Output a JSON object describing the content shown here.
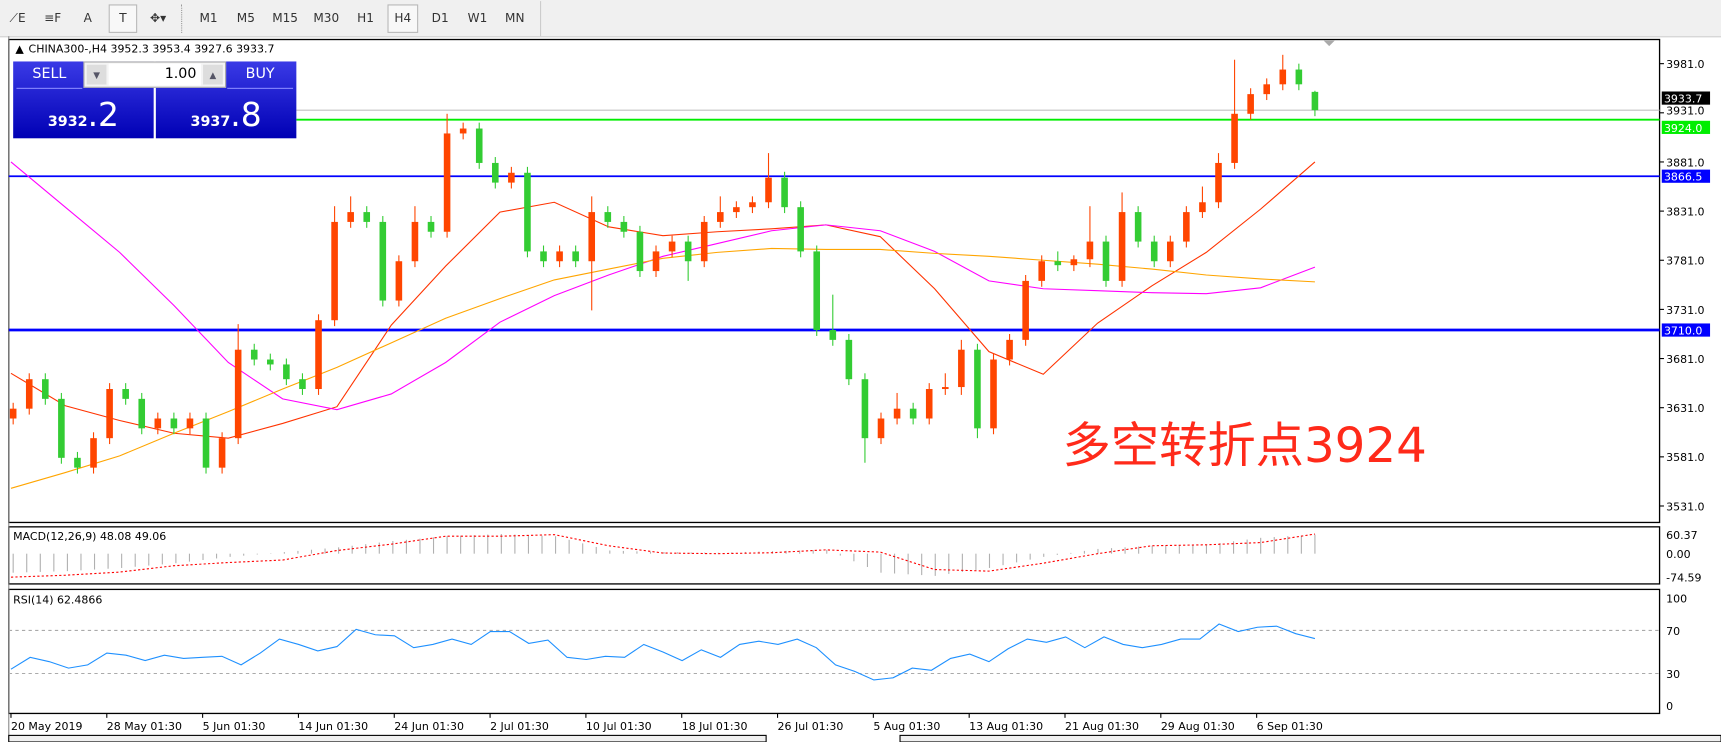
{
  "toolbar": {
    "tools": [
      {
        "name": "fibonacci-expansion-icon",
        "label": "⟋E"
      },
      {
        "name": "fibonacci-lines-icon",
        "label": "≡F"
      },
      {
        "name": "text-icon",
        "label": "A"
      },
      {
        "name": "text-label-icon",
        "label": "T"
      },
      {
        "name": "arrows-icon",
        "label": "✥▾"
      }
    ],
    "timeframes": [
      "M1",
      "M5",
      "M15",
      "M30",
      "H1",
      "H4",
      "D1",
      "W1",
      "MN"
    ],
    "active_timeframe": "H4"
  },
  "header": {
    "symbol": "CHINA300-,H4",
    "ohlc": "3952.3 3953.4 3927.6 3933.7"
  },
  "trade_panel": {
    "sell_label": "SELL",
    "buy_label": "BUY",
    "lot": "1.00",
    "sell_main": "3932",
    "sell_frac": ".2",
    "buy_main": "3937",
    "buy_frac": ".8"
  },
  "annotation": "多空转折点3924",
  "colors": {
    "up": "#ff4500",
    "down": "#33cc33",
    "ma_fast": "#ff3300",
    "ma_mid": "#ff00ff",
    "ma_slow": "#ffa500",
    "support": "#0000ff",
    "pivot": "#00ee00",
    "macd_signal": "#ff0000",
    "rsi": "#1e90ff"
  },
  "chart_data": [
    {
      "type": "candlestick",
      "ylim": [
        3511,
        4001
      ],
      "y_ticks": [
        "3981.0",
        "3931.0",
        "3881.0",
        "3831.0",
        "3781.0",
        "3731.0",
        "3681.0",
        "3631.0",
        "3581.0",
        "3531.0"
      ],
      "x_ticks": [
        "20 May 2019",
        "28 May 01:30",
        "5 Jun 01:30",
        "14 Jun 01:30",
        "24 Jun 01:30",
        "2 Jul 01:30",
        "10 Jul 01:30",
        "18 Jul 01:30",
        "26 Jul 01:30",
        "5 Aug 01:30",
        "13 Aug 01:30",
        "21 Aug 01:30",
        "29 Aug 01:30",
        "6 Sep 01:30"
      ],
      "ohlc": [
        [
          3620,
          3636,
          3614,
          3630
        ],
        [
          3630,
          3666,
          3624,
          3660
        ],
        [
          3660,
          3666,
          3634,
          3640
        ],
        [
          3640,
          3646,
          3574,
          3580
        ],
        [
          3580,
          3586,
          3564,
          3570
        ],
        [
          3570,
          3606,
          3564,
          3600
        ],
        [
          3600,
          3656,
          3594,
          3650
        ],
        [
          3650,
          3656,
          3634,
          3640
        ],
        [
          3640,
          3646,
          3604,
          3610
        ],
        [
          3610,
          3626,
          3604,
          3620
        ],
        [
          3620,
          3626,
          3604,
          3610
        ],
        [
          3610,
          3626,
          3604,
          3620
        ],
        [
          3620,
          3626,
          3564,
          3570
        ],
        [
          3570,
          3606,
          3564,
          3600
        ],
        [
          3600,
          3716,
          3594,
          3690
        ],
        [
          3690,
          3696,
          3674,
          3680
        ],
        [
          3680,
          3686,
          3669,
          3675
        ],
        [
          3675,
          3681,
          3654,
          3660
        ],
        [
          3660,
          3666,
          3644,
          3650
        ],
        [
          3650,
          3726,
          3644,
          3720
        ],
        [
          3720,
          3836,
          3714,
          3820
        ],
        [
          3820,
          3846,
          3814,
          3830
        ],
        [
          3830,
          3836,
          3814,
          3820
        ],
        [
          3820,
          3826,
          3734,
          3740
        ],
        [
          3740,
          3786,
          3734,
          3780
        ],
        [
          3780,
          3836,
          3774,
          3820
        ],
        [
          3820,
          3826,
          3804,
          3810
        ],
        [
          3810,
          3930,
          3804,
          3910
        ],
        [
          3910,
          3921,
          3904,
          3915
        ],
        [
          3915,
          3921,
          3874,
          3880
        ],
        [
          3880,
          3886,
          3854,
          3860
        ],
        [
          3860,
          3876,
          3854,
          3870
        ],
        [
          3870,
          3876,
          3784,
          3790
        ],
        [
          3790,
          3796,
          3774,
          3780
        ],
        [
          3780,
          3796,
          3774,
          3790
        ],
        [
          3790,
          3796,
          3774,
          3780
        ],
        [
          3780,
          3846,
          3730,
          3830
        ],
        [
          3830,
          3836,
          3814,
          3820
        ],
        [
          3820,
          3826,
          3804,
          3810
        ],
        [
          3810,
          3816,
          3764,
          3770
        ],
        [
          3770,
          3796,
          3764,
          3790
        ],
        [
          3790,
          3806,
          3784,
          3800
        ],
        [
          3800,
          3806,
          3760,
          3780
        ],
        [
          3780,
          3826,
          3774,
          3820
        ],
        [
          3820,
          3846,
          3814,
          3830
        ],
        [
          3830,
          3841,
          3824,
          3835
        ],
        [
          3835,
          3846,
          3829,
          3840
        ],
        [
          3840,
          3890,
          3834,
          3865
        ],
        [
          3865,
          3871,
          3829,
          3835
        ],
        [
          3835,
          3841,
          3784,
          3790
        ],
        [
          3790,
          3796,
          3704,
          3710
        ],
        [
          3710,
          3746,
          3694,
          3700
        ],
        [
          3700,
          3706,
          3654,
          3660
        ],
        [
          3660,
          3666,
          3575,
          3600
        ],
        [
          3600,
          3626,
          3594,
          3620
        ],
        [
          3620,
          3646,
          3614,
          3630
        ],
        [
          3630,
          3636,
          3614,
          3620
        ],
        [
          3620,
          3656,
          3614,
          3650
        ],
        [
          3650,
          3666,
          3644,
          3652
        ],
        [
          3652,
          3700,
          3644,
          3690
        ],
        [
          3690,
          3696,
          3600,
          3610
        ],
        [
          3610,
          3686,
          3604,
          3680
        ],
        [
          3680,
          3706,
          3674,
          3700
        ],
        [
          3700,
          3766,
          3694,
          3760
        ],
        [
          3760,
          3786,
          3754,
          3780
        ],
        [
          3780,
          3790,
          3770,
          3776
        ],
        [
          3776,
          3786,
          3770,
          3782
        ],
        [
          3782,
          3836,
          3774,
          3800
        ],
        [
          3800,
          3806,
          3754,
          3760
        ],
        [
          3760,
          3850,
          3754,
          3830
        ],
        [
          3830,
          3836,
          3794,
          3800
        ],
        [
          3800,
          3806,
          3774,
          3780
        ],
        [
          3780,
          3806,
          3774,
          3800
        ],
        [
          3800,
          3836,
          3794,
          3830
        ],
        [
          3830,
          3856,
          3824,
          3840
        ],
        [
          3840,
          3890,
          3834,
          3880
        ],
        [
          3880,
          3985,
          3874,
          3930
        ],
        [
          3930,
          3956,
          3924,
          3950
        ],
        [
          3950,
          3966,
          3944,
          3960
        ],
        [
          3960,
          3990,
          3954,
          3975
        ],
        [
          3975,
          3981,
          3954,
          3960
        ],
        [
          3952.3,
          3953.4,
          3927.6,
          3933.7
        ]
      ],
      "moving_averages": [
        {
          "color": "#ff3300",
          "values": [
            3666,
            3633,
            3618,
            3605,
            3600,
            3615,
            3632,
            3715,
            3775,
            3830,
            3840,
            3815,
            3806,
            3810,
            3813,
            3817,
            3805,
            3752,
            3688,
            3665,
            3717,
            3755,
            3789,
            3833,
            3881
          ]
        },
        {
          "color": "#ff00ff",
          "values": [
            3881,
            3835,
            3789,
            3735,
            3677,
            3640,
            3629,
            3645,
            3677,
            3718,
            3745,
            3766,
            3785,
            3798,
            3811,
            3817,
            3811,
            3790,
            3760,
            3752,
            3750,
            3748,
            3747,
            3753,
            3774
          ]
        },
        {
          "color": "#ffa500",
          "values": [
            3549,
            3565,
            3582,
            3605,
            3627,
            3650,
            3672,
            3697,
            3722,
            3742,
            3761,
            3772,
            3783,
            3789,
            3793,
            3792,
            3792,
            3788,
            3785,
            3781,
            3777,
            3772,
            3766,
            3762,
            3759
          ]
        }
      ],
      "horizontal_lines": [
        {
          "value": 3924.0,
          "label": "3924.0",
          "color": "#00ee00",
          "text_color": "#ffffff"
        },
        {
          "value": 3866.5,
          "label": "3866.5",
          "color": "#0000ff",
          "text_color": "#ffffff"
        },
        {
          "value": 3710.0,
          "label": "3710.0",
          "color": "#0000ff",
          "text_color": "#ffffff"
        }
      ],
      "current_price": {
        "value": 3933.7,
        "label": "3933.7"
      }
    },
    {
      "type": "bar+line",
      "title": "MACD(12,26,9) 48.08 49.06",
      "ylim": [
        -74.59,
        60.37
      ],
      "y_ticks": [
        "60.37",
        "0.00",
        "-74.59"
      ],
      "histogram": [
        -60,
        -55,
        -45,
        -30,
        -10,
        5,
        20,
        40,
        55,
        62,
        55,
        10,
        5,
        3,
        8,
        12,
        -60,
        -70,
        -45,
        -10,
        15,
        25,
        28,
        50,
        60
      ],
      "signal": [
        -74,
        -68,
        -58,
        -38,
        -28,
        -20,
        10,
        30,
        55,
        55,
        60,
        25,
        2,
        0,
        3,
        12,
        5,
        -50,
        -55,
        -30,
        0,
        25,
        28,
        35,
        62
      ]
    },
    {
      "type": "line",
      "title": "RSI(14) 62.4866",
      "ylim": [
        0,
        100
      ],
      "y_ticks": [
        "100",
        "70",
        "30",
        "0"
      ],
      "levels": [
        70,
        30
      ],
      "values": [
        34,
        45,
        41,
        35,
        38,
        49,
        47,
        42,
        47,
        44,
        45,
        46,
        38,
        49,
        62,
        57,
        51,
        55,
        71,
        66,
        65,
        54,
        57,
        62,
        57,
        69,
        69,
        58,
        61,
        45,
        43,
        46,
        45,
        57,
        50,
        42,
        52,
        45,
        57,
        60,
        57,
        62,
        54,
        38,
        32,
        24,
        26,
        35,
        33,
        44,
        48,
        41,
        53,
        62,
        59,
        64,
        54,
        64,
        57,
        54,
        57,
        62,
        62,
        76,
        69,
        73,
        74,
        67,
        62.49
      ]
    }
  ]
}
